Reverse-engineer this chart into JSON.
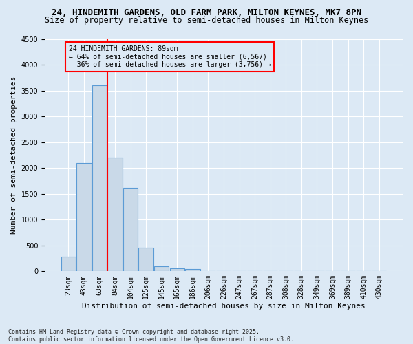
{
  "title_line1": "24, HINDEMITH GARDENS, OLD FARM PARK, MILTON KEYNES, MK7 8PN",
  "title_line2": "Size of property relative to semi-detached houses in Milton Keynes",
  "xlabel": "Distribution of semi-detached houses by size in Milton Keynes",
  "ylabel": "Number of semi-detached properties",
  "footer": "Contains HM Land Registry data © Crown copyright and database right 2025.\nContains public sector information licensed under the Open Government Licence v3.0.",
  "bar_labels": [
    "23sqm",
    "43sqm",
    "63sqm",
    "84sqm",
    "104sqm",
    "125sqm",
    "145sqm",
    "165sqm",
    "186sqm",
    "206sqm",
    "226sqm",
    "247sqm",
    "267sqm",
    "287sqm",
    "308sqm",
    "328sqm",
    "349sqm",
    "369sqm",
    "389sqm",
    "410sqm",
    "430sqm"
  ],
  "bar_values": [
    290,
    2100,
    3600,
    2200,
    1620,
    460,
    100,
    55,
    50,
    0,
    0,
    0,
    0,
    0,
    0,
    0,
    0,
    0,
    0,
    0,
    0
  ],
  "bar_color": "#c9d9e8",
  "bar_edge_color": "#5b9bd5",
  "vline_color": "red",
  "annotation_text": "24 HINDEMITH GARDENS: 89sqm\n← 64% of semi-detached houses are smaller (6,567)\n  36% of semi-detached houses are larger (3,756) →",
  "ylim": [
    0,
    4500
  ],
  "bg_color": "#dce9f5",
  "grid_color": "white",
  "title1_fontsize": 9,
  "title2_fontsize": 8.5,
  "axis_label_fontsize": 8,
  "tick_fontsize": 7,
  "annotation_fontsize": 7,
  "footer_fontsize": 6
}
